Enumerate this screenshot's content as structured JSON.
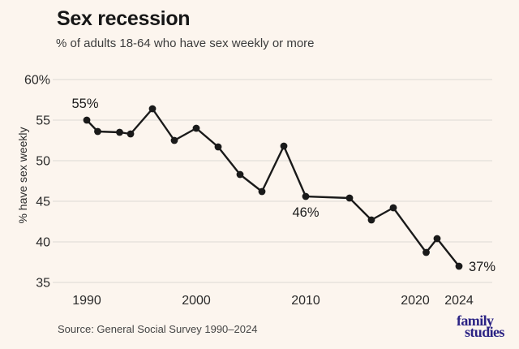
{
  "header": {
    "title": "Sex recession",
    "subtitle": "% of adults 18-64 who have sex weekly or more"
  },
  "chart_data": {
    "type": "line",
    "x": [
      1990,
      1991,
      1993,
      1994,
      1996,
      1998,
      2000,
      2002,
      2004,
      2006,
      2008,
      2010,
      2014,
      2016,
      2018,
      2021,
      2022,
      2024
    ],
    "values": [
      55,
      53.6,
      53.5,
      53.3,
      56.4,
      52.5,
      54,
      51.7,
      48.3,
      46.2,
      51.8,
      45.6,
      45.4,
      42.7,
      44.2,
      38.7,
      40.4,
      37
    ],
    "title": "Sex recession",
    "subtitle": "% of adults 18-64 who have sex weekly or more",
    "xlabel": "",
    "ylabel": "% have sex weekly",
    "xlim": [
      1987,
      2027
    ],
    "ylim": [
      33,
      61
    ],
    "grid": true,
    "legend": "none",
    "y_ticks": [
      {
        "label": "60%",
        "value": 60
      },
      {
        "label": "55",
        "value": 55
      },
      {
        "label": "50",
        "value": 50
      },
      {
        "label": "45",
        "value": 45
      },
      {
        "label": "40",
        "value": 40
      },
      {
        "label": "35",
        "value": 35
      }
    ],
    "x_ticks": [
      {
        "label": "1990",
        "year": 1990
      },
      {
        "label": "2000",
        "year": 2000
      },
      {
        "label": "2010",
        "year": 2010
      },
      {
        "label": "2020",
        "year": 2020
      },
      {
        "label": "2024",
        "year": 2024
      }
    ],
    "annotations": [
      {
        "text": "55%",
        "year": 1990,
        "value": 55,
        "placement": "above"
      },
      {
        "text": "46%",
        "year": 2010,
        "value": 45.6,
        "placement": "below"
      },
      {
        "text": "37%",
        "year": 2024,
        "value": 37,
        "placement": "right"
      }
    ]
  },
  "colors": {
    "background": "#fcf5ee",
    "line": "#1a1a1a",
    "grid": "#e3dfd9",
    "tick_text": "#2a2a2a",
    "annotation_text": "#1a1a1a",
    "logo": "#2b2384"
  },
  "footer": {
    "source": "Source: General Social Survey 1990–2024",
    "logo_line1": "family",
    "logo_line2": "studies"
  }
}
